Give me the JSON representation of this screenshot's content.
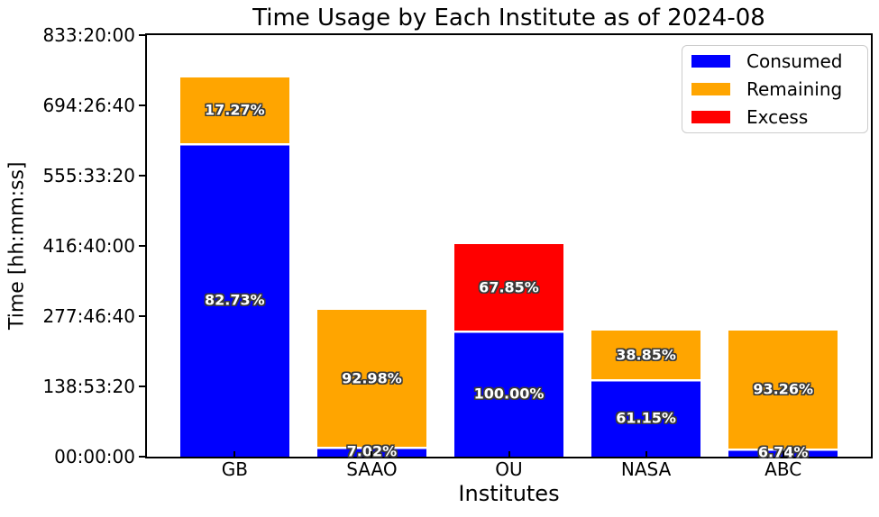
{
  "title": "Time Usage by Each Institute as of 2024-08",
  "axes": {
    "x_label": "Institutes",
    "y_label": "Time [hh:mm:ss]",
    "y_ticks": [
      "00:00:00",
      "138:53:20",
      "277:46:40",
      "416:40:00",
      "555:33:20",
      "694:26:40",
      "833:20:00"
    ],
    "y_tick_seconds": [
      0,
      500000,
      1000000,
      1500000,
      2000000,
      2500000,
      3000000
    ]
  },
  "legend": {
    "items": [
      {
        "label": "Consumed",
        "color": "#0000ff"
      },
      {
        "label": "Remaining",
        "color": "#ffa500"
      },
      {
        "label": "Excess",
        "color": "#ff0000"
      }
    ]
  },
  "chart_data": {
    "type": "bar",
    "stacked": true,
    "title": "Time Usage by Each Institute as of 2024-08",
    "xlabel": "Institutes",
    "ylabel": "Time [hh:mm:ss]",
    "categories": [
      "GB",
      "SAAO",
      "OU",
      "NASA",
      "ABC"
    ],
    "unit": "seconds",
    "ylim": [
      0,
      3000000
    ],
    "xlim": [
      -0.64,
      4.64
    ],
    "bar_width": 0.8,
    "grid": false,
    "legend_position": "upper right",
    "series": [
      {
        "name": "Consumed",
        "color": "#0000ff",
        "values": [
          2233710,
          73290,
          900000,
          550350,
          60660
        ],
        "labels": [
          "82.73%",
          "7.02%",
          "100.00%",
          "61.15%",
          "6.74%"
        ]
      },
      {
        "name": "Remaining",
        "color": "#ffa500",
        "values": [
          466290,
          970710,
          0,
          349650,
          839340
        ],
        "labels": [
          "17.27%",
          "92.98%",
          "",
          "38.85%",
          "93.26%"
        ]
      },
      {
        "name": "Excess",
        "color": "#ff0000",
        "values": [
          0,
          0,
          610650,
          0,
          0
        ],
        "labels": [
          "",
          "",
          "67.85%",
          "",
          ""
        ]
      }
    ]
  }
}
